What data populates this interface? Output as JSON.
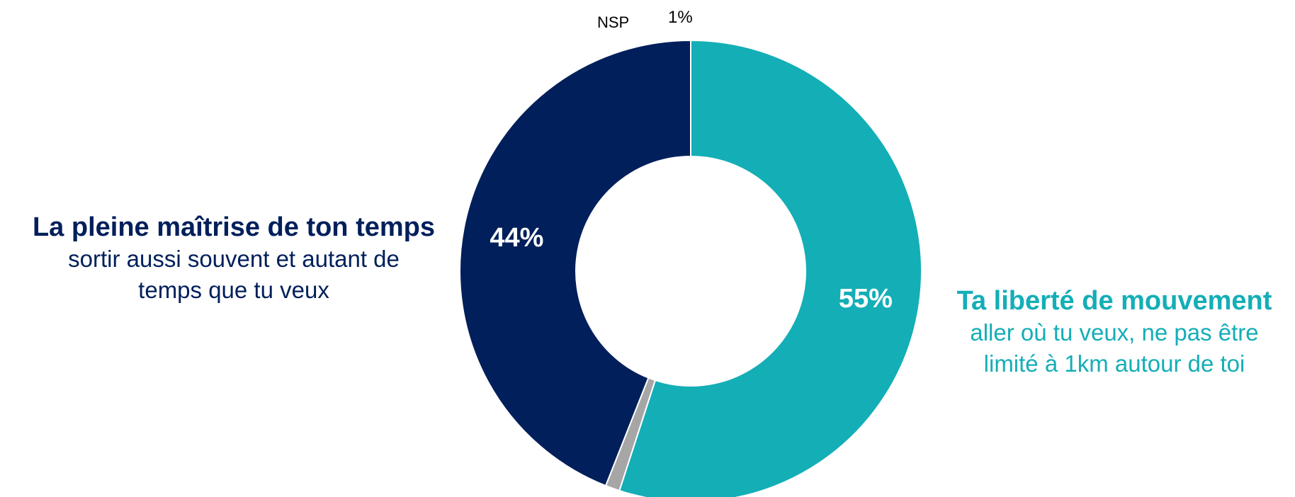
{
  "chart_data": {
    "type": "pie",
    "variant": "donut",
    "slices": [
      {
        "key": "mouvement",
        "label": "Ta liberté de mouvement",
        "value": 55,
        "value_label": "55%",
        "color": "#14AEB7"
      },
      {
        "key": "nsp",
        "label": "NSP",
        "value": 1,
        "value_label": "1%",
        "color": "#A6A6A6"
      },
      {
        "key": "temps",
        "label": "La pleine maîtrise de ton temps",
        "value": 44,
        "value_label": "44%",
        "color": "#001F5B"
      }
    ]
  },
  "left_label": {
    "title": "La pleine maîtrise de ton temps",
    "line1": "sortir aussi souvent et autant de",
    "line2": "temps que tu veux",
    "color": "#001F5B"
  },
  "right_label": {
    "title": "Ta liberté de mouvement",
    "line1": "aller où tu veux, ne pas être",
    "line2": "limité à 1km autour de toi",
    "color": "#14AEB7"
  },
  "nsp_label": "NSP",
  "nsp_value_label": "1%"
}
